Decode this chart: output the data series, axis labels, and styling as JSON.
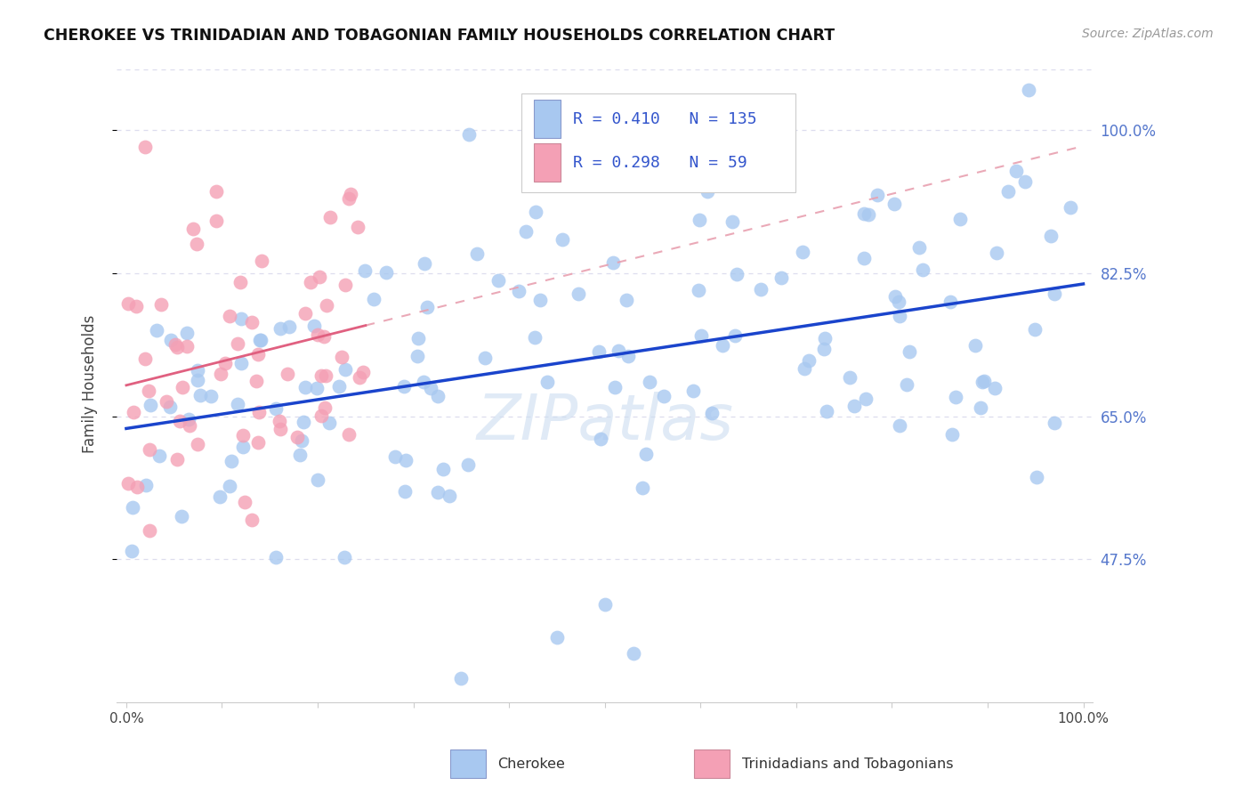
{
  "title": "CHEROKEE VS TRINIDADIAN AND TOBAGONIAN FAMILY HOUSEHOLDS CORRELATION CHART",
  "source": "Source: ZipAtlas.com",
  "ylabel": "Family Households",
  "ytick_values": [
    47.5,
    65.0,
    82.5,
    100.0
  ],
  "ytick_labels": [
    "47.5%",
    "65.0%",
    "82.5%",
    "100.0%"
  ],
  "legend_blue_R": "0.410",
  "legend_blue_N": "135",
  "legend_pink_R": "0.298",
  "legend_pink_N": "59",
  "legend_blue_label": "Cherokee",
  "legend_pink_label": "Trinidadians and Tobagonians",
  "blue_scatter_color": "#a8c8f0",
  "pink_scatter_color": "#f4a0b5",
  "blue_line_color": "#1a44cc",
  "pink_line_color": "#e06080",
  "pink_dashed_color": "#e8a0b0",
  "legend_text_color": "#3355cc",
  "ytick_color": "#5577cc",
  "watermark": "ZIPatlas",
  "watermark_color": "#ccddf0",
  "grid_color": "#ddddee",
  "title_color": "#111111",
  "source_color": "#999999",
  "ymin": 30,
  "ymax": 108,
  "xmin": -1,
  "xmax": 101
}
